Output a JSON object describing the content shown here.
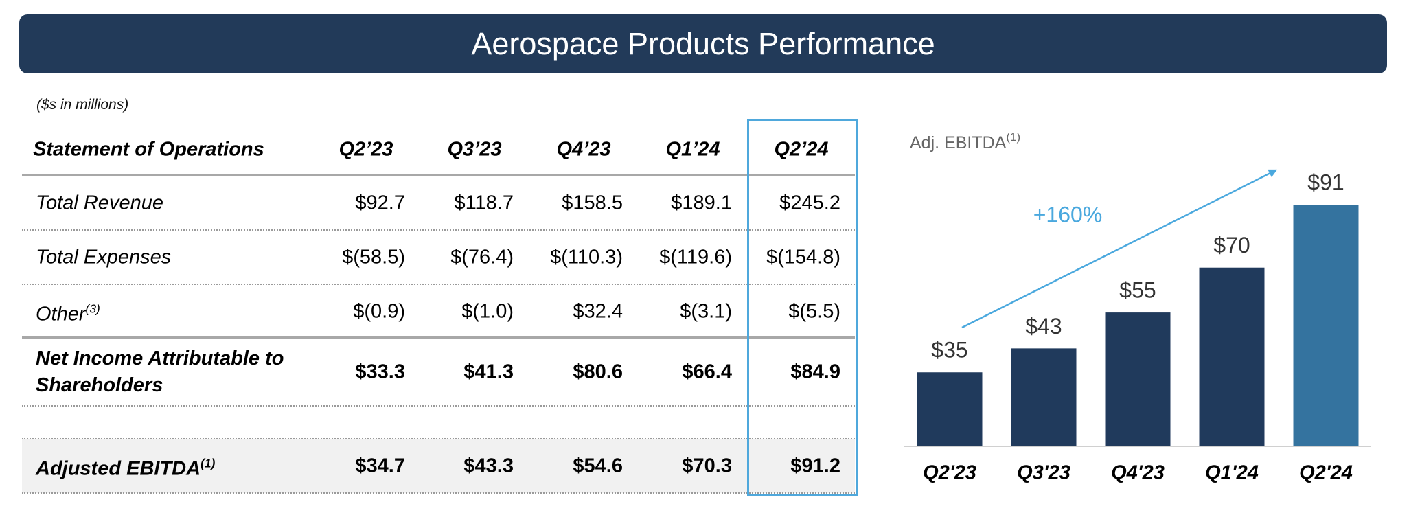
{
  "header": {
    "title": "Aerospace Products Performance"
  },
  "note": "($s in millions)",
  "table": {
    "columns": [
      "Statement of Operations",
      "Q2’23",
      "Q3’23",
      "Q4’23",
      "Q1’24",
      "Q2’24"
    ],
    "rows": [
      {
        "label": "Total Revenue",
        "values": [
          "$92.7",
          "$118.7",
          "$158.5",
          "$189.1",
          "$245.2"
        ]
      },
      {
        "label": "Total Expenses",
        "values": [
          "$(58.5)",
          "$(76.4)",
          "$(110.3)",
          "$(119.6)",
          "$(154.8)"
        ]
      },
      {
        "label": "Other",
        "note": "(3)",
        "values": [
          "$(0.9)",
          "$(1.0)",
          "$32.4",
          "$(3.1)",
          "$(5.5)"
        ]
      },
      {
        "label": "Net Income Attributable to Shareholders",
        "bold": true,
        "values": [
          "$33.3",
          "$41.3",
          "$80.6",
          "$66.4",
          "$84.9"
        ]
      },
      {
        "label": "Adjusted EBITDA",
        "note": "(1)",
        "bold": true,
        "shaded": true,
        "values": [
          "$34.7",
          "$43.3",
          "$54.6",
          "$70.3",
          "$91.2"
        ]
      }
    ]
  },
  "chart_data": {
    "type": "bar",
    "title": "Adj. EBITDA",
    "title_note": "(1)",
    "categories": [
      "Q2'23",
      "Q3'23",
      "Q4'23",
      "Q1'24",
      "Q2'24"
    ],
    "values": [
      35,
      43,
      55,
      70,
      91
    ],
    "value_labels": [
      "$35",
      "$43",
      "$55",
      "$70",
      "$91"
    ],
    "colors": [
      "#203a5c",
      "#203a5c",
      "#203a5c",
      "#203a5c",
      "#34739f"
    ],
    "ylim": [
      10.5,
      100
    ],
    "annotation": "+160%"
  }
}
